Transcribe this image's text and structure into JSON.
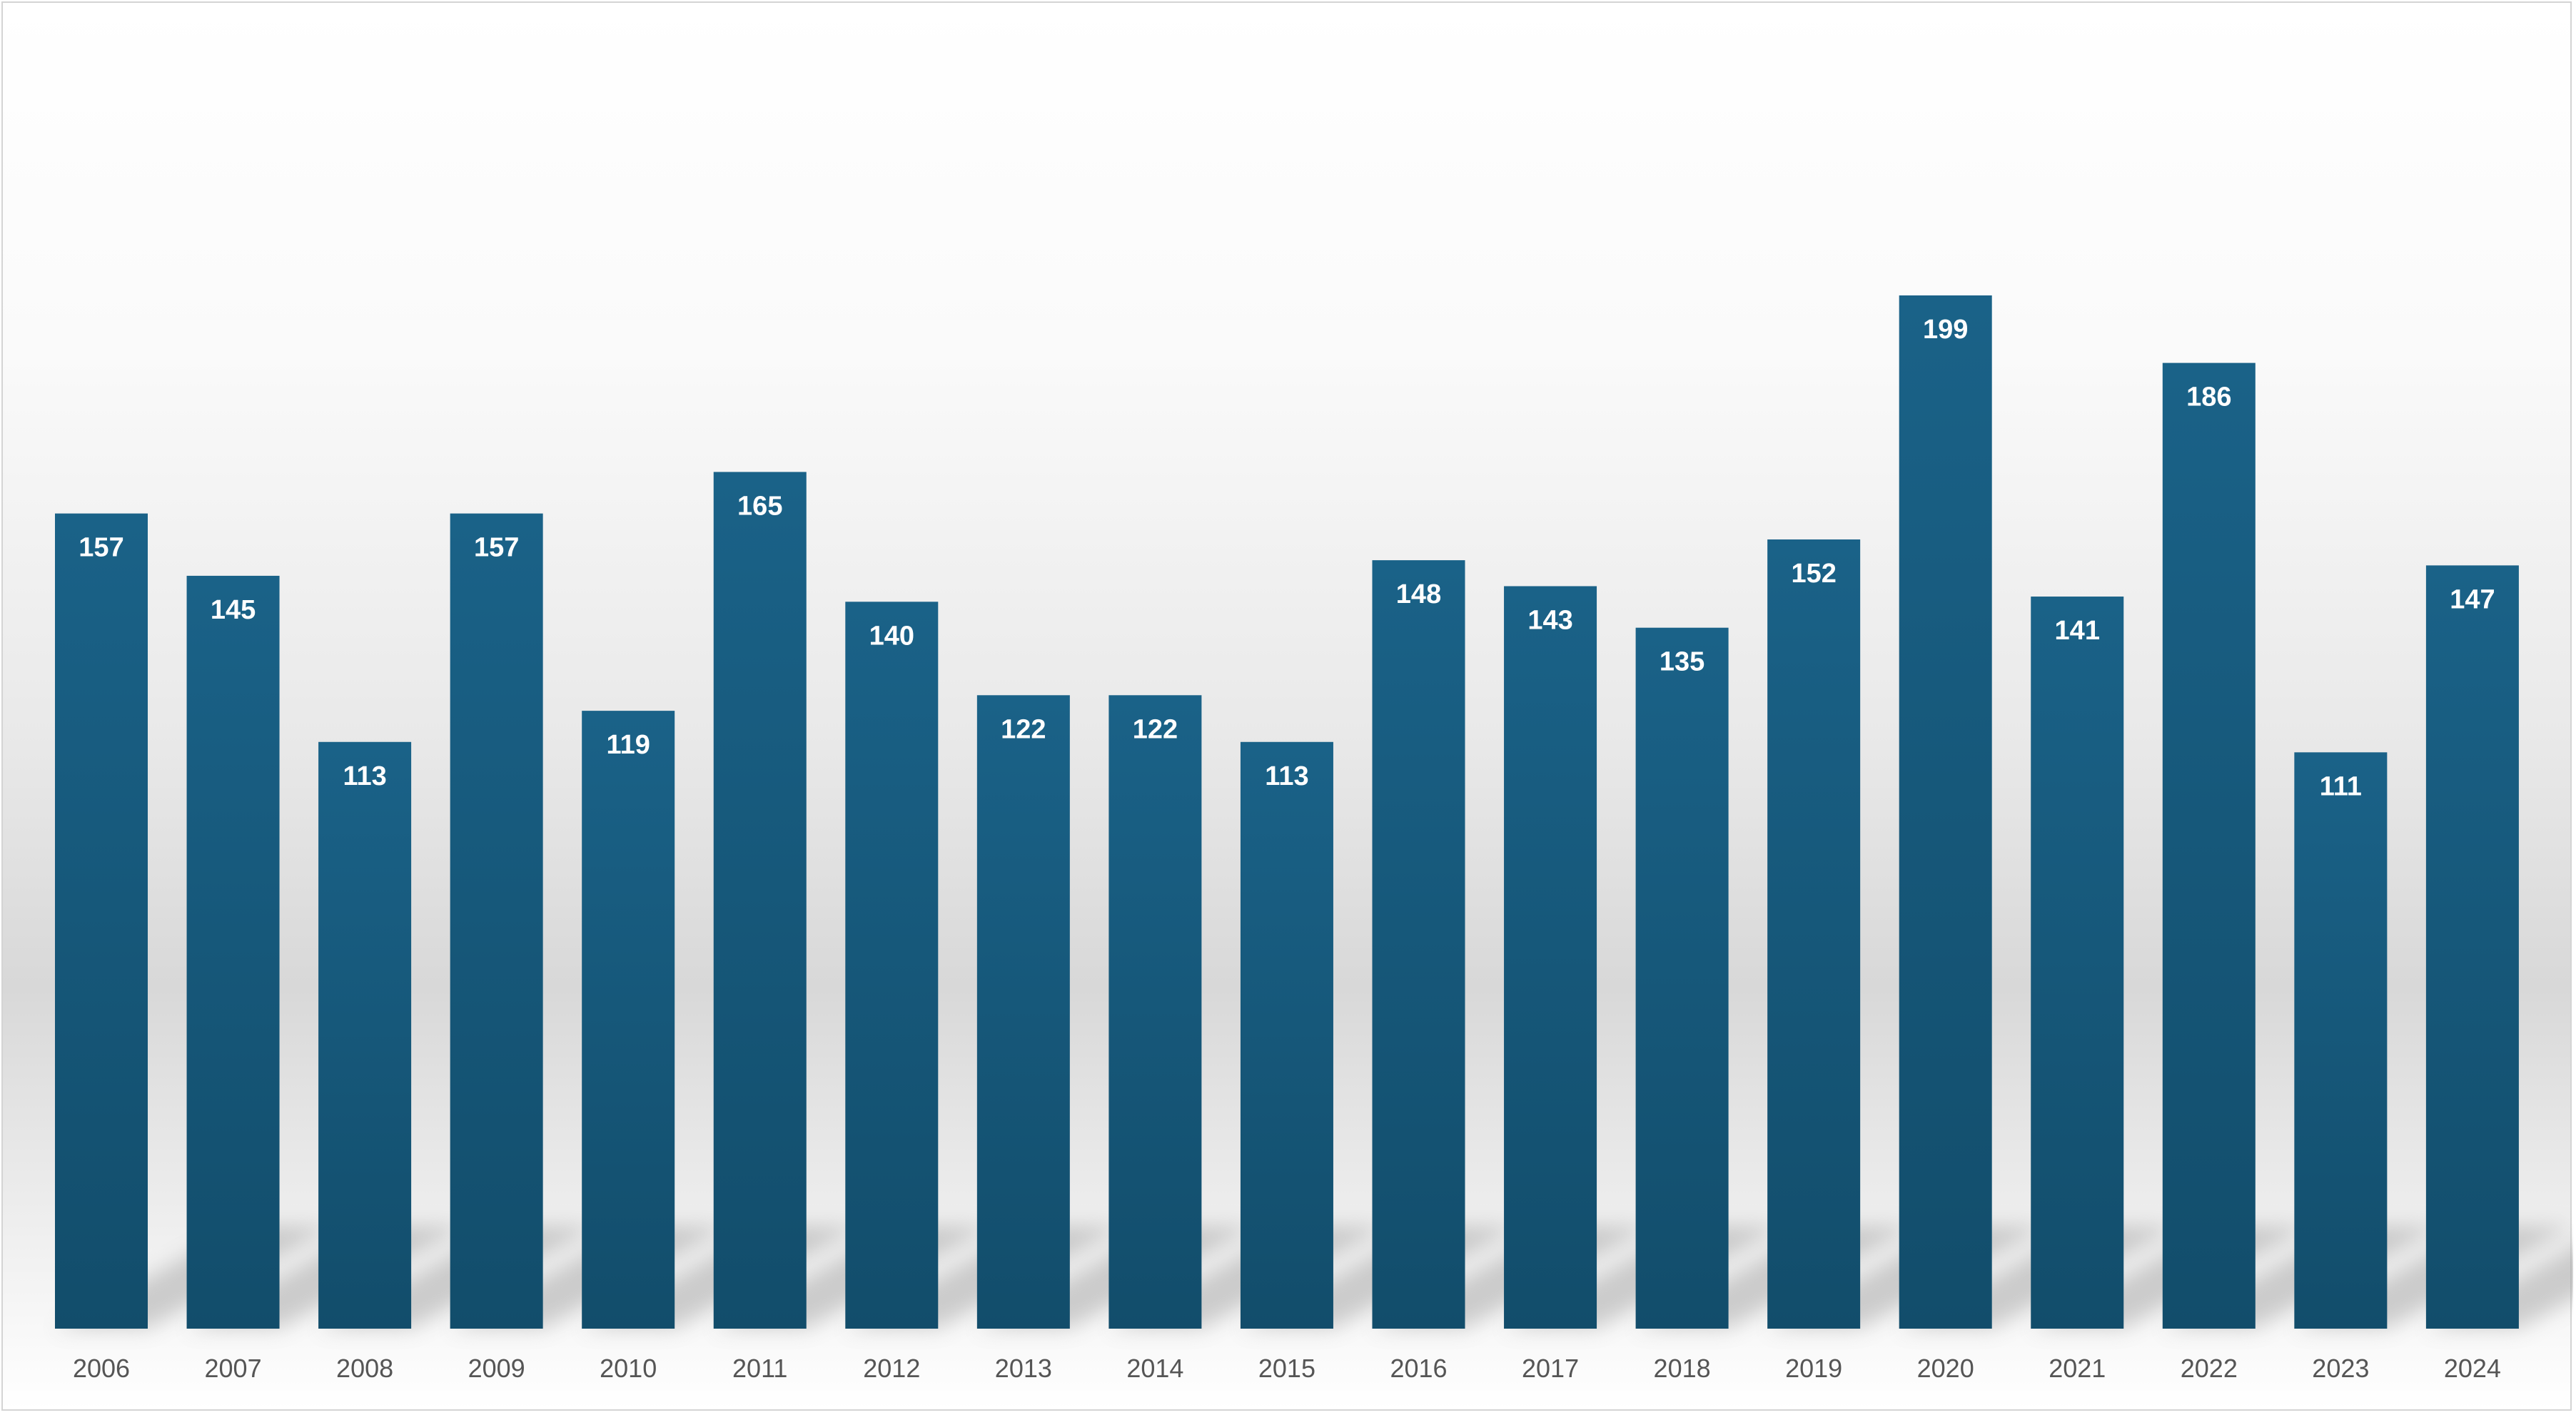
{
  "chart_data": {
    "type": "bar",
    "categories": [
      "2006",
      "2007",
      "2008",
      "2009",
      "2010",
      "2011",
      "2012",
      "2013",
      "2014",
      "2015",
      "2016",
      "2017",
      "2018",
      "2019",
      "2020",
      "2021",
      "2022",
      "2023",
      "2024"
    ],
    "values": [
      157,
      145,
      113,
      157,
      119,
      165,
      140,
      122,
      122,
      113,
      148,
      143,
      135,
      152,
      199,
      141,
      186,
      111,
      147
    ],
    "title": "",
    "xlabel": "",
    "ylabel": "",
    "ylim": [
      0,
      199
    ],
    "grid": false,
    "legend": "none",
    "data_labels": "inside-top",
    "colors": {
      "bar_top": "#1a6288",
      "bar_bottom": "#124d6b",
      "label_text": "#ffffff",
      "tick_text": "#555555"
    }
  }
}
